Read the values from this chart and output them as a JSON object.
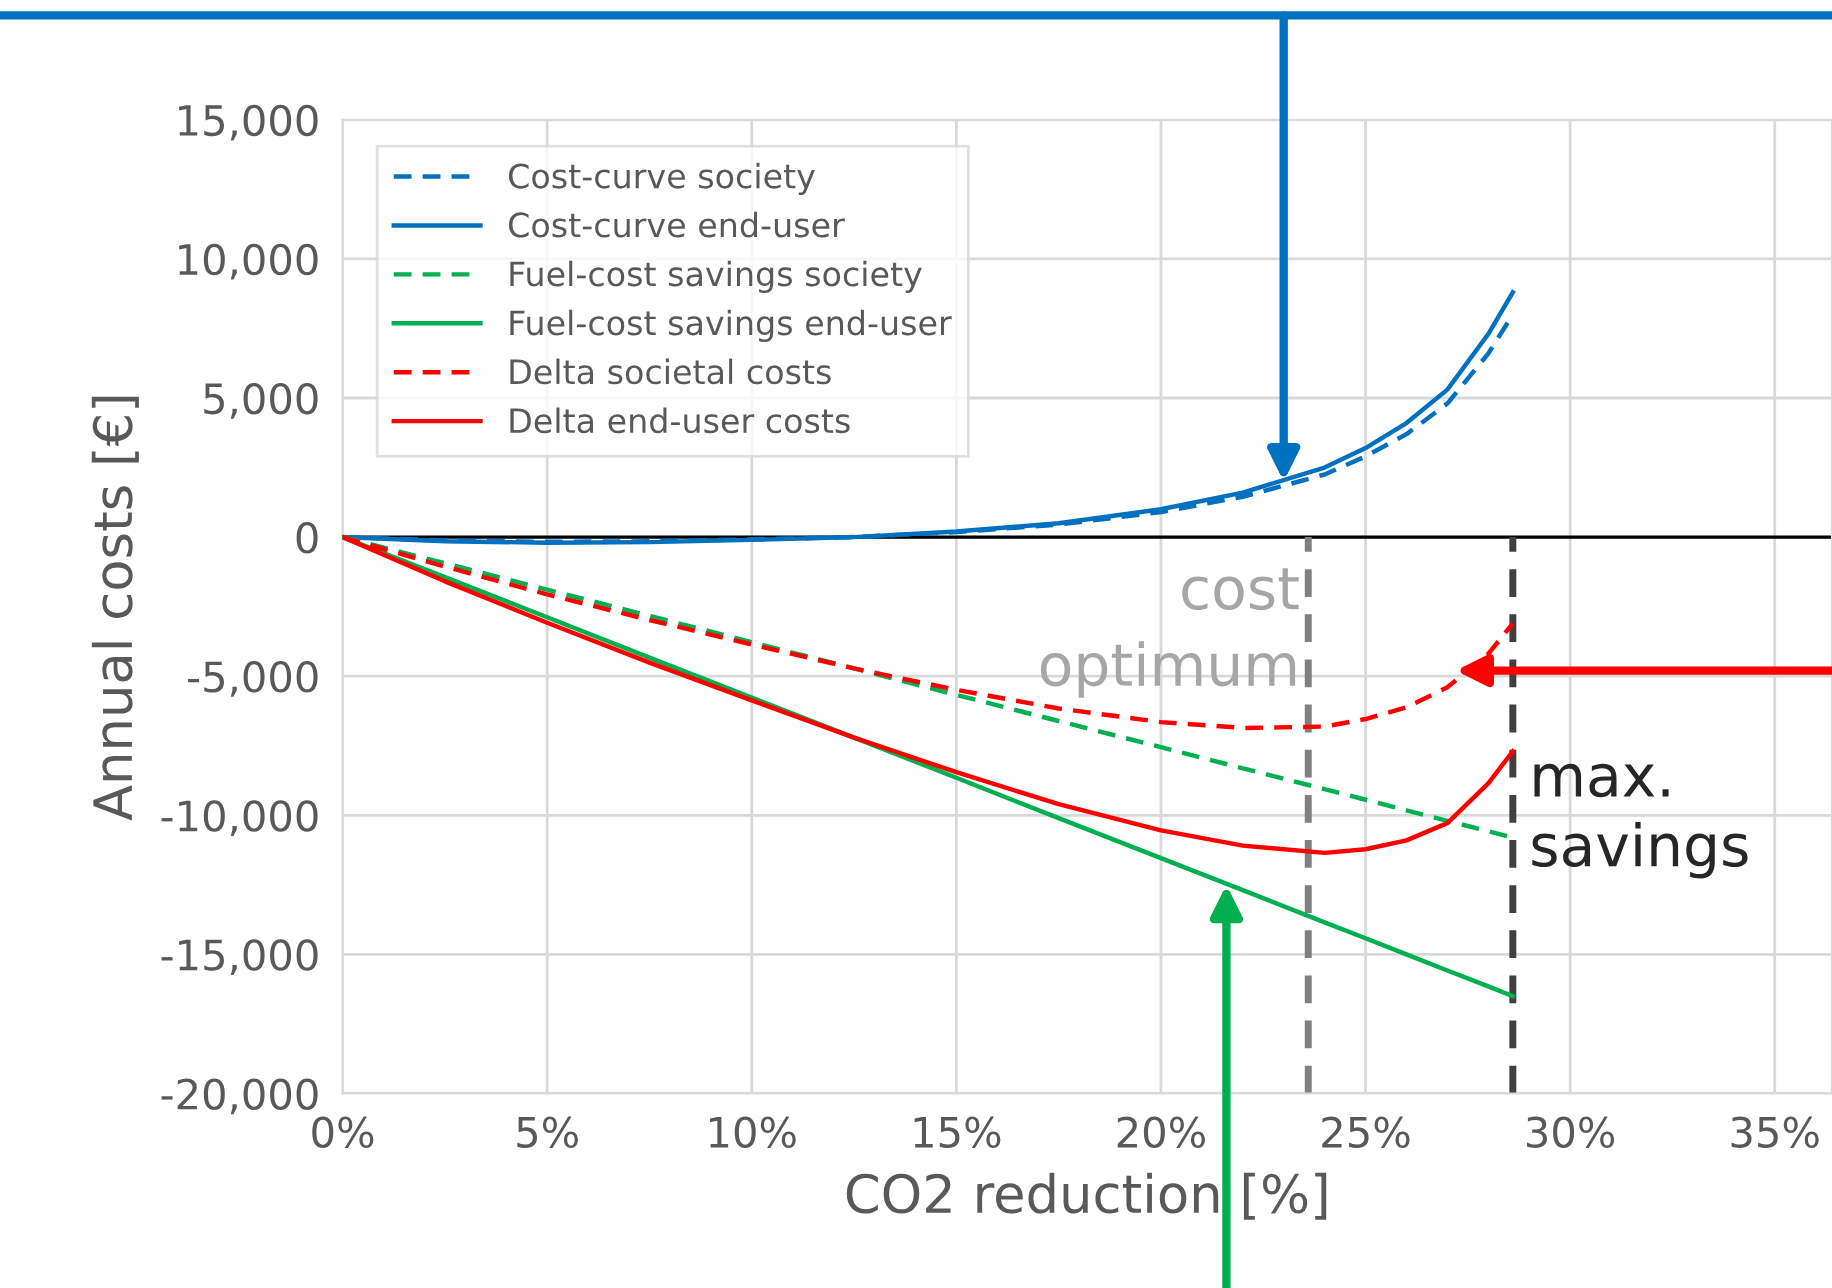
{
  "chart_data": {
    "type": "line",
    "xlabel": "CO2 reduction [%]",
    "ylabel": "Annual costs [€]",
    "xlim": [
      0,
      36.4
    ],
    "ylim": [
      -20000,
      15000
    ],
    "xticks": [
      {
        "value": 0,
        "label": "0%"
      },
      {
        "value": 5,
        "label": "5%"
      },
      {
        "value": 10,
        "label": "10%"
      },
      {
        "value": 15,
        "label": "15%"
      },
      {
        "value": 20,
        "label": "20%"
      },
      {
        "value": 25,
        "label": "25%"
      },
      {
        "value": 30,
        "label": "30%"
      },
      {
        "value": 35,
        "label": "35%"
      }
    ],
    "yticks": [
      {
        "value": -20000,
        "label": "-20,000"
      },
      {
        "value": -15000,
        "label": "-15,000"
      },
      {
        "value": -10000,
        "label": "-10,000"
      },
      {
        "value": -5000,
        "label": "-5,000"
      },
      {
        "value": 0,
        "label": "0"
      },
      {
        "value": 5000,
        "label": "5,000"
      },
      {
        "value": 10000,
        "label": "10,000"
      },
      {
        "value": 15000,
        "label": "15,000"
      }
    ],
    "x": [
      0,
      2.5,
      5,
      7.5,
      10,
      12.5,
      15,
      17.5,
      20,
      22,
      24,
      25,
      26,
      27,
      28,
      28.6
    ],
    "series": [
      {
        "name": "Cost-curve society",
        "color": "#0070c0",
        "line_style": "dashed",
        "values": [
          0,
          -120,
          -170,
          -150,
          -80,
          0,
          180,
          450,
          900,
          1450,
          2250,
          2900,
          3700,
          4800,
          6600,
          8000
        ]
      },
      {
        "name": "Cost-curve end-user",
        "color": "#0070c0",
        "line_style": "solid",
        "values": [
          0,
          -150,
          -200,
          -180,
          -100,
          0,
          200,
          500,
          1000,
          1600,
          2500,
          3200,
          4100,
          5300,
          7300,
          8800
        ]
      },
      {
        "name": "Fuel-cost savings society",
        "color": "#00b050",
        "line_style": "dashed",
        "values": [
          0,
          -940,
          -1890,
          -2830,
          -3780,
          -4720,
          -5670,
          -6610,
          -7550,
          -8310,
          -9060,
          -9440,
          -9820,
          -10200,
          -10570,
          -10800
        ]
      },
      {
        "name": "Fuel-cost savings end-user",
        "color": "#00b050",
        "line_style": "solid",
        "values": [
          0,
          -1440,
          -2880,
          -4330,
          -5770,
          -7210,
          -8650,
          -10100,
          -11540,
          -12690,
          -13850,
          -14420,
          -15000,
          -15580,
          -16150,
          -16500
        ]
      },
      {
        "name": "Delta societal costs",
        "color": "#ff0000",
        "line_style": "dashed",
        "values": [
          0,
          -1060,
          -2060,
          -2980,
          -3860,
          -4720,
          -5490,
          -6160,
          -6650,
          -6860,
          -6810,
          -6540,
          -6120,
          -5400,
          -4200,
          -3100
        ]
      },
      {
        "name": "Delta end-user costs",
        "color": "#ff0000",
        "line_style": "solid",
        "values": [
          0,
          -1590,
          -3080,
          -4510,
          -5870,
          -7210,
          -8450,
          -9600,
          -10540,
          -11090,
          -11350,
          -11220,
          -10900,
          -10280,
          -8850,
          -7700
        ]
      }
    ],
    "ref_lines": [
      {
        "axis": "y",
        "value": 0,
        "color": "#000000",
        "line_style": "solid"
      },
      {
        "axis": "x",
        "value": 23.6,
        "label": "cost\noptimum",
        "color": "#808080",
        "line_style": "dashed"
      },
      {
        "axis": "x",
        "value": 28.6,
        "label": "max.\nsavings",
        "color": "#404040",
        "line_style": "dashed"
      }
    ],
    "grid": true,
    "legend": "top left",
    "marker": "none"
  }
}
